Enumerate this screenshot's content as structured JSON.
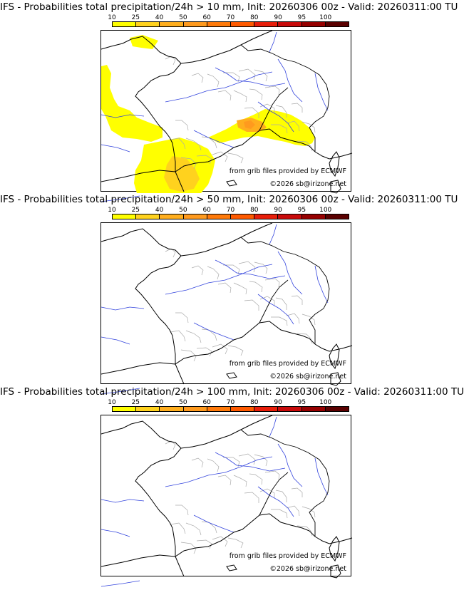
{
  "legend": {
    "labels": [
      "10",
      "25",
      "40",
      "50",
      "60",
      "70",
      "80",
      "90",
      "95",
      "100"
    ],
    "colors": [
      "#ffff00",
      "#ffd21e",
      "#ffae1e",
      "#ff9a1e",
      "#ff7a0a",
      "#ff5a00",
      "#e81e0a",
      "#c80a0a",
      "#960000",
      "#5a0000"
    ]
  },
  "credits": {
    "source": "from grib files provided by ECMWF",
    "copyright": "©2026 sb@irizone.net"
  },
  "panels": [
    {
      "title": "IFS - Probabilities total precipitation/24h > 10 mm, Init: 20260306 00z - Valid: 20260311:00 TU",
      "has_precip": true
    },
    {
      "title": "IFS - Probabilities total precipitation/24h > 50 mm, Init: 20260306 00z - Valid: 20260311:00 TU",
      "has_precip": false
    },
    {
      "title": "IFS - Probabilities total precipitation/24h > 100 mm, Init: 20260306 00z - Valid: 20260311:00 TU",
      "has_precip": false
    }
  ]
}
